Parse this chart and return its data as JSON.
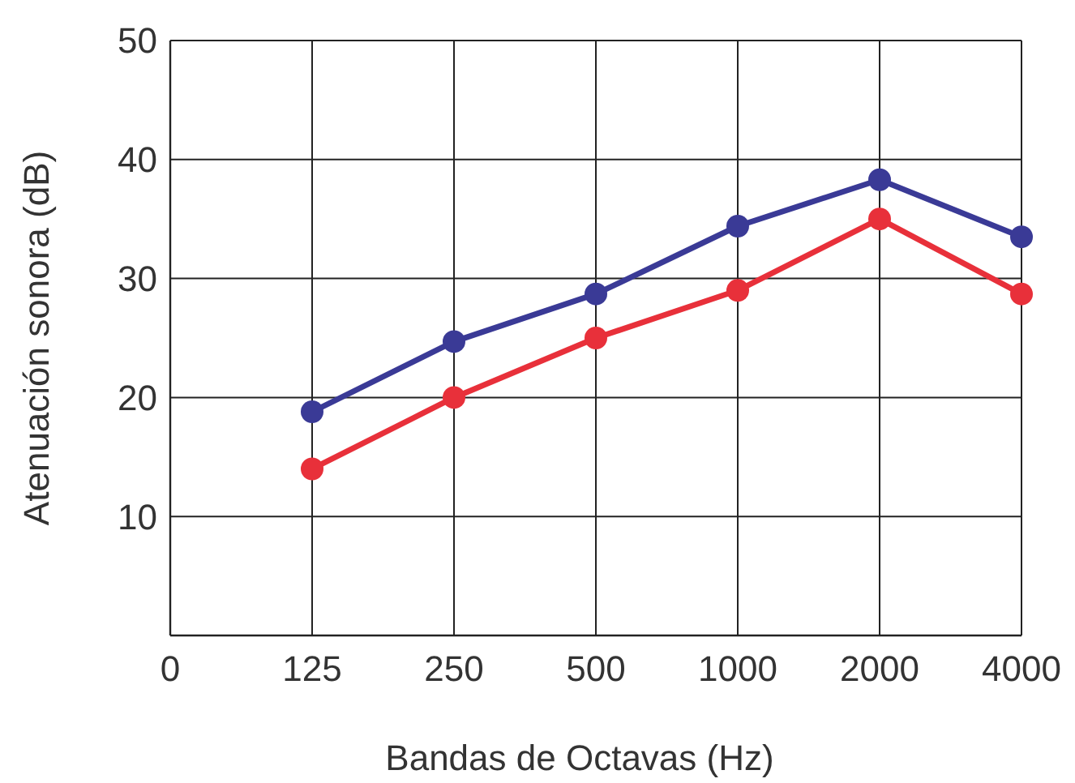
{
  "chart_data": {
    "type": "line",
    "xlabel": "Bandas de Octavas (Hz)",
    "ylabel": "Atenuación sonora (dB)",
    "categories": [
      "0",
      "125",
      "250",
      "500",
      "1000",
      "2000",
      "4000"
    ],
    "ylim": [
      0,
      50
    ],
    "yticks": [
      10,
      20,
      30,
      40,
      50
    ],
    "grid": true,
    "marker": "circle",
    "series": [
      {
        "color": "#3a3a96",
        "values": [
          null,
          18.8,
          24.7,
          28.7,
          34.4,
          38.3,
          33.5
        ]
      },
      {
        "color": "#e8303a",
        "values": [
          null,
          14,
          20,
          25,
          29,
          35,
          28.7
        ]
      }
    ]
  }
}
